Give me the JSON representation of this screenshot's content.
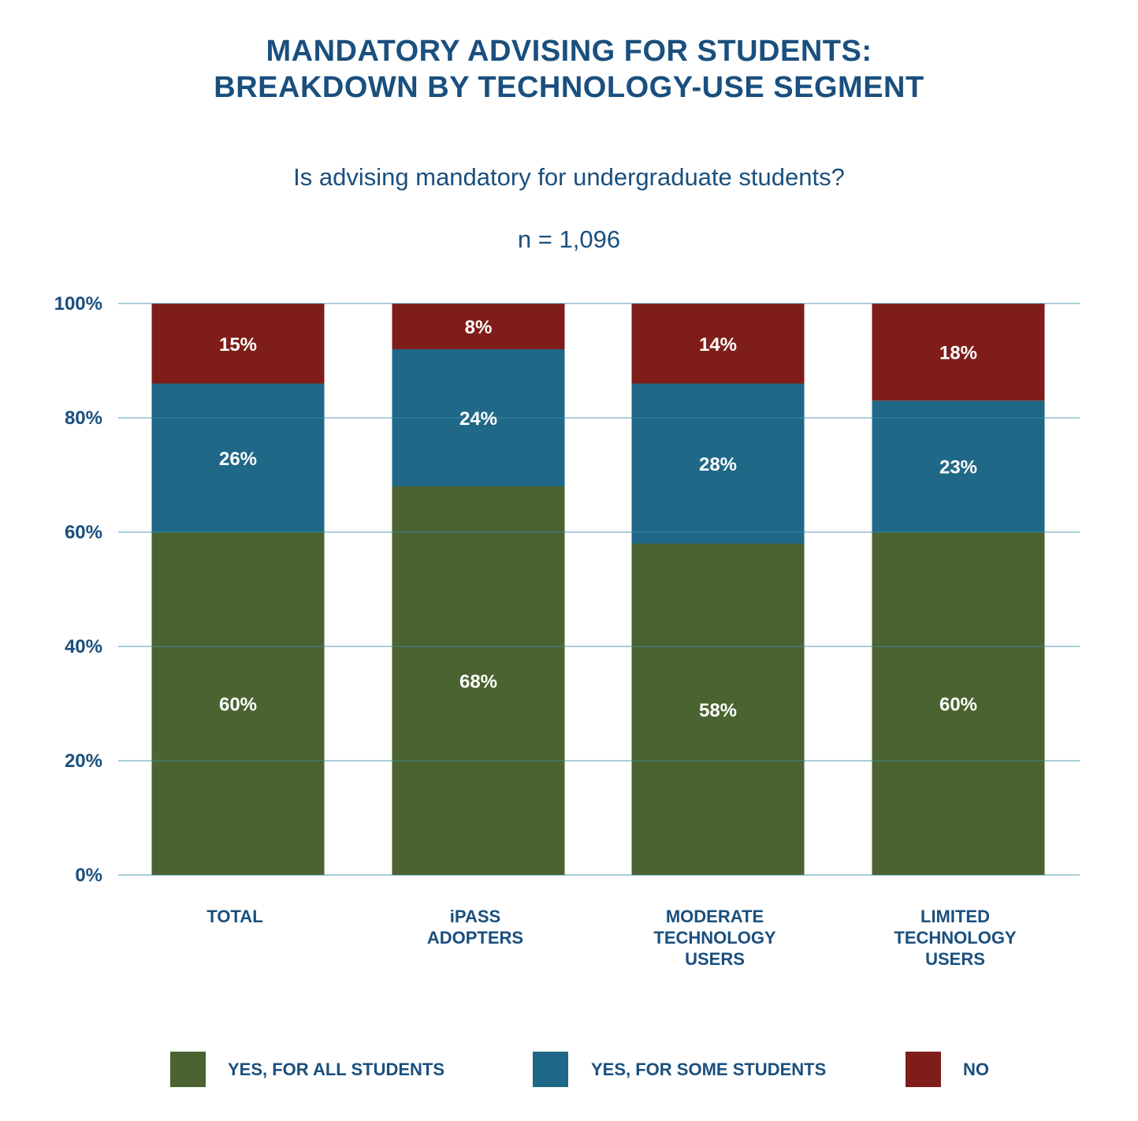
{
  "chart_data": {
    "type": "bar",
    "stacked": true,
    "title": [
      "MANDATORY ADVISING FOR STUDENTS:",
      "BREAKDOWN BY TECHNOLOGY-USE SEGMENT"
    ],
    "subtitle": "Is advising mandatory for undergraduate students?",
    "sample_size": "n = 1,096",
    "categories": [
      [
        "TOTAL"
      ],
      [
        "iPASS",
        "ADOPTERS"
      ],
      [
        "MODERATE",
        "TECHNOLOGY",
        "USERS"
      ],
      [
        "LIMITED",
        "TECHNOLOGY",
        "USERS"
      ]
    ],
    "series": [
      {
        "name": "YES, FOR ALL STUDENTS",
        "color": "#4a6330",
        "values": [
          60,
          68,
          58,
          60
        ],
        "labels": [
          "60%",
          "68%",
          "58%",
          "60%"
        ]
      },
      {
        "name": "YES, FOR SOME STUDENTS",
        "color": "#1f6887",
        "values": [
          26,
          24,
          28,
          23
        ],
        "labels": [
          "26%",
          "24%",
          "28%",
          "23%"
        ]
      },
      {
        "name": "NO",
        "color": "#7f1d1a",
        "values": [
          15,
          8,
          14,
          18
        ],
        "labels": [
          "15%",
          "8%",
          "14%",
          "18%"
        ]
      }
    ],
    "yticks": [
      "0%",
      "20%",
      "40%",
      "60%",
      "80%",
      "100%"
    ],
    "ylim": [
      0,
      100
    ],
    "grid": true,
    "legend": "bottom"
  }
}
